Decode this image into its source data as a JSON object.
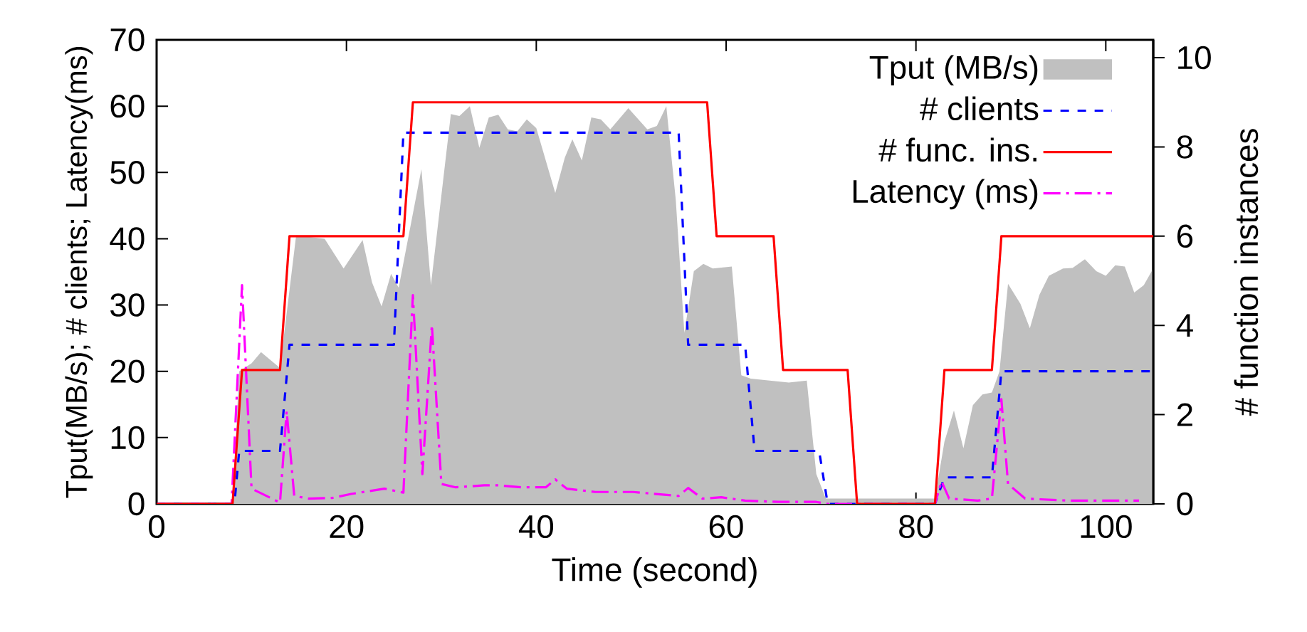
{
  "chart_data": {
    "type": "line",
    "xlabel": "Time (second)",
    "ylabel": "Tput(MB/s); # clients; Latency(ms)",
    "y2label": "# function instances",
    "xlim": [
      0,
      105
    ],
    "xticks": [
      0,
      20,
      40,
      60,
      80,
      100
    ],
    "ylim": [
      0,
      70
    ],
    "yticks": [
      0,
      10,
      20,
      30,
      40,
      50,
      60,
      70
    ],
    "y2lim": [
      0,
      10.4
    ],
    "y2ticks": [
      0,
      2,
      4,
      6,
      8,
      10
    ],
    "legend": "top right",
    "grid": false,
    "series": [
      {
        "name": "Tput (MB/s)",
        "type": "area",
        "color": "#c0c0c0",
        "x": [
          0,
          8,
          8.7,
          10,
          11,
          13,
          14.7,
          17.7,
          19.7,
          21.7,
          22.7,
          23.7,
          24.7,
          25.5,
          27.9,
          28.9,
          31,
          31.9,
          33,
          34,
          35,
          36,
          37,
          38,
          39,
          40,
          42,
          43,
          43.8,
          44.8,
          45.8,
          46.8,
          47.8,
          49.7,
          51.7,
          52.7,
          53.7,
          54.7,
          55.6,
          56.6,
          57.6,
          58.6,
          60.6,
          61.6,
          62.6,
          64.6,
          66.6,
          68.5,
          69.5,
          70.5,
          82,
          83,
          84,
          85,
          86,
          87,
          88,
          88.8,
          89.7,
          91,
          92,
          93,
          94,
          95.5,
          96.5,
          97.8,
          99,
          100,
          101,
          102,
          103,
          104,
          105
        ],
        "values": [
          0,
          0,
          20,
          21.2,
          22.9,
          20.5,
          40.5,
          40,
          35.5,
          39.8,
          33.4,
          29.8,
          34.7,
          32.6,
          50.5,
          33,
          58.8,
          58.5,
          60,
          53.7,
          58.3,
          58.7,
          56.5,
          56.2,
          58,
          56.7,
          46.9,
          52.2,
          55,
          51.8,
          58.3,
          58,
          56.5,
          59.7,
          56.5,
          57,
          60,
          45.8,
          25.8,
          35.1,
          36.2,
          35.5,
          35.8,
          19.4,
          18.9,
          18.6,
          18.3,
          18.6,
          4.5,
          0.8,
          0.8,
          9.4,
          14.1,
          8.4,
          14.9,
          16.5,
          16.8,
          20,
          33.2,
          30.2,
          26.5,
          31.5,
          34.4,
          35.5,
          35.6,
          36.9,
          35.1,
          34.4,
          36,
          35.8,
          31.9,
          33,
          35.5
        ]
      },
      {
        "name": "# clients",
        "color": "#0000ff",
        "line_style": "dashed",
        "x": [
          0,
          8.2,
          8.7,
          13,
          14,
          25,
          26,
          55,
          56,
          62,
          63,
          69.8,
          70.7,
          82,
          83,
          88,
          89,
          105
        ],
        "values": [
          0,
          0,
          8,
          8,
          24,
          24,
          56,
          56,
          24,
          24,
          8,
          8,
          0,
          0,
          4,
          4,
          20,
          20
        ]
      },
      {
        "name": "# func. ins.",
        "color": "#ff0000",
        "line_style": "solid",
        "axis": "y2",
        "x": [
          0,
          8,
          9,
          13,
          14,
          26,
          27,
          58,
          59,
          65,
          66,
          72.8,
          73.8,
          82,
          83,
          88,
          89,
          105
        ],
        "values": [
          0,
          0,
          3,
          3,
          6,
          6,
          9,
          9,
          6,
          6,
          3,
          3,
          0,
          0,
          3,
          3,
          6,
          6
        ]
      },
      {
        "name": "Latency (ms)",
        "color": "#ff00ff",
        "line_style": "dashdot",
        "x": [
          0,
          7.9,
          9,
          10,
          13,
          13.7,
          14.5,
          16,
          18.5,
          20.5,
          24,
          26,
          27,
          28,
          29,
          30,
          31.5,
          34.5,
          36,
          38.5,
          41,
          42,
          43.2,
          46.2,
          50.2,
          55,
          56,
          57.5,
          59.5,
          62,
          65.5,
          69.5,
          70.7,
          82,
          82.7,
          83.5,
          86.5,
          88,
          89,
          89.7,
          91.5,
          96,
          103.5
        ],
        "values": [
          0,
          0,
          33,
          2.3,
          0.2,
          14,
          1.2,
          0.8,
          0.9,
          1.5,
          2.3,
          1.7,
          31.5,
          4.5,
          27,
          3,
          2.5,
          2.8,
          2.8,
          2.5,
          2.5,
          3.7,
          2.3,
          1.8,
          1.8,
          1.2,
          2.4,
          0.8,
          1,
          0.5,
          0.3,
          0.3,
          0,
          0,
          3.4,
          0.8,
          0.5,
          0.8,
          15.8,
          3,
          0.8,
          0.5,
          0.5
        ]
      }
    ]
  }
}
